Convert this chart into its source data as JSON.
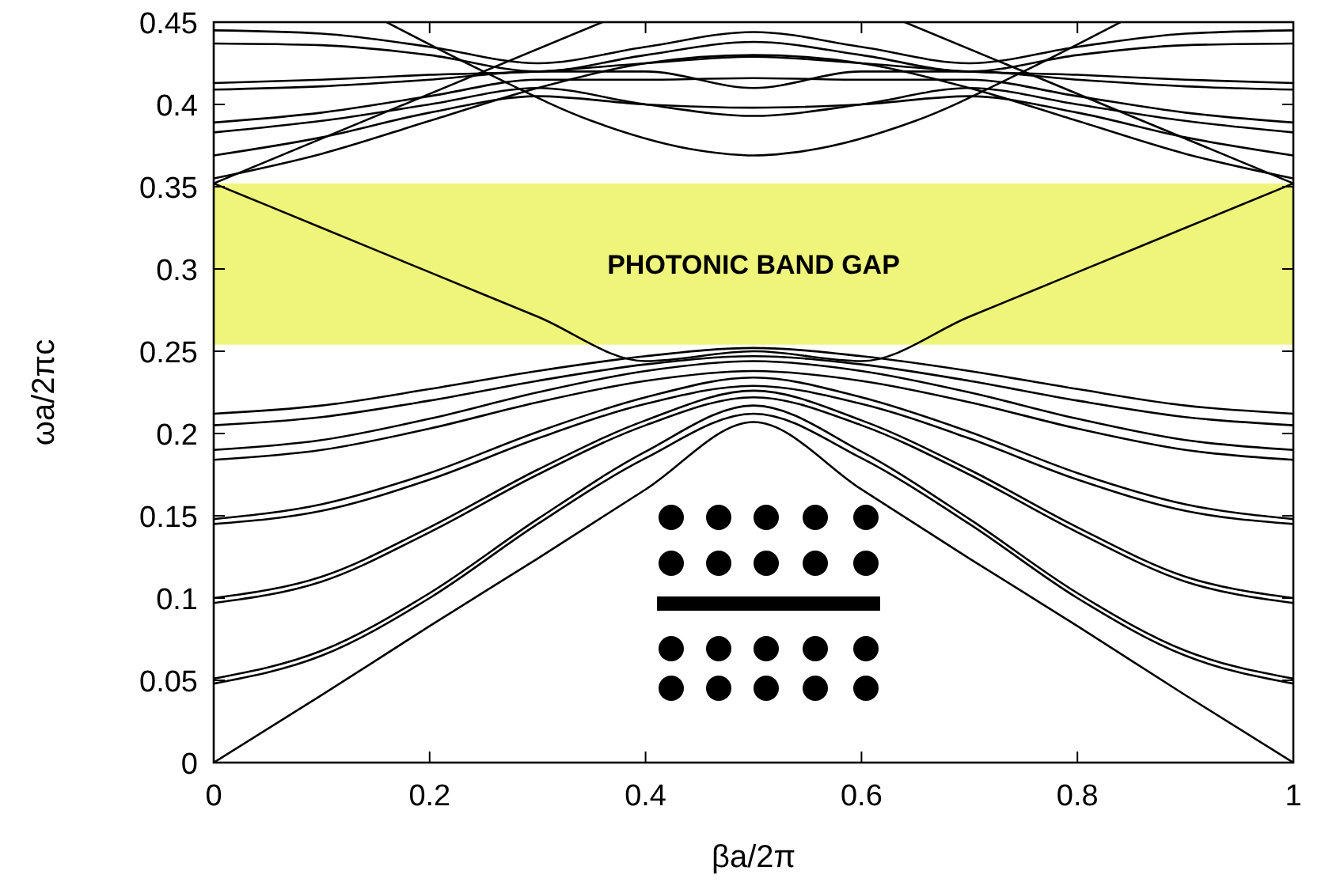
{
  "chart_data": {
    "type": "line",
    "xlabel": "βa/2π",
    "ylabel": "ωa/2πc",
    "x": [
      0,
      0.1,
      0.2,
      0.3,
      0.4,
      0.5,
      0.6,
      0.7,
      0.8,
      0.9,
      1
    ],
    "xlim": [
      0,
      1
    ],
    "xticks": [
      0,
      0.2,
      0.4,
      0.6,
      0.8,
      1
    ],
    "ylim": [
      0,
      0.45
    ],
    "yticks": [
      0,
      0.05,
      0.1,
      0.15,
      0.2,
      0.25,
      0.3,
      0.35,
      0.4,
      0.45
    ],
    "grid": false,
    "marker": "none",
    "line_style": "solid",
    "bands": [
      {
        "axis": "y",
        "from": 0.254,
        "to": 0.352,
        "label": "PHOTONIC BAND GAP",
        "color": "#eef57a"
      }
    ],
    "series": [
      {
        "color": "#000000",
        "values": [
          0,
          0.041,
          0.083,
          0.124,
          0.166,
          0.207,
          0.166,
          0.124,
          0.083,
          0.041,
          0
        ]
      },
      {
        "color": "#000000",
        "values": [
          0.048,
          0.065,
          0.1,
          0.145,
          0.185,
          0.212,
          0.185,
          0.145,
          0.1,
          0.065,
          0.048
        ]
      },
      {
        "color": "#000000",
        "values": [
          0.051,
          0.068,
          0.103,
          0.148,
          0.189,
          0.217,
          0.189,
          0.148,
          0.103,
          0.068,
          0.051
        ]
      },
      {
        "color": "#000000",
        "values": [
          0.097,
          0.11,
          0.14,
          0.175,
          0.205,
          0.222,
          0.205,
          0.175,
          0.14,
          0.11,
          0.097
        ]
      },
      {
        "color": "#000000",
        "values": [
          0.1,
          0.113,
          0.143,
          0.178,
          0.208,
          0.226,
          0.208,
          0.178,
          0.143,
          0.113,
          0.1
        ]
      },
      {
        "color": "#000000",
        "values": [
          0.145,
          0.153,
          0.172,
          0.197,
          0.218,
          0.229,
          0.218,
          0.197,
          0.172,
          0.153,
          0.145
        ]
      },
      {
        "color": "#000000",
        "values": [
          0.148,
          0.157,
          0.176,
          0.201,
          0.222,
          0.234,
          0.222,
          0.201,
          0.176,
          0.157,
          0.148
        ]
      },
      {
        "color": "#000000",
        "values": [
          0.184,
          0.19,
          0.203,
          0.219,
          0.232,
          0.238,
          0.232,
          0.219,
          0.203,
          0.19,
          0.184
        ]
      },
      {
        "color": "#000000",
        "values": [
          0.19,
          0.196,
          0.209,
          0.225,
          0.238,
          0.244,
          0.238,
          0.225,
          0.209,
          0.196,
          0.19
        ]
      },
      {
        "color": "#000000",
        "values": [
          0.205,
          0.21,
          0.22,
          0.232,
          0.242,
          0.247,
          0.242,
          0.232,
          0.22,
          0.21,
          0.205
        ]
      },
      {
        "color": "#000000",
        "values": [
          0.212,
          0.217,
          0.227,
          0.238,
          0.247,
          0.252,
          0.247,
          0.238,
          0.227,
          0.217,
          0.212
        ]
      },
      {
        "color": "#000000",
        "values": [
          0.352,
          0.325,
          0.298,
          0.271,
          0.244,
          0.25,
          0.244,
          0.271,
          0.298,
          0.325,
          0.352
        ]
      },
      {
        "color": "#000000",
        "x": [
          0,
          0.36,
          0.5,
          0.64,
          1
        ],
        "values": [
          0.352,
          0.45,
          null,
          0.45,
          0.352
        ]
      },
      {
        "color": "#000000",
        "x": [
          0.16,
          0.25,
          0.35,
          0.45,
          0.5,
          0.55,
          0.65,
          0.75,
          0.84
        ],
        "values": [
          0.45,
          0.42,
          0.39,
          0.372,
          0.369,
          0.372,
          0.39,
          0.42,
          0.45
        ]
      },
      {
        "color": "#000000",
        "values": [
          0.355,
          0.37,
          0.39,
          0.41,
          0.425,
          0.43,
          0.425,
          0.41,
          0.39,
          0.37,
          0.355
        ]
      },
      {
        "color": "#000000",
        "values": [
          0.369,
          0.38,
          0.395,
          0.405,
          0.4,
          0.398,
          0.4,
          0.405,
          0.395,
          0.38,
          0.369
        ]
      },
      {
        "color": "#000000",
        "values": [
          0.383,
          0.39,
          0.4,
          0.41,
          0.4,
          0.393,
          0.4,
          0.41,
          0.4,
          0.39,
          0.383
        ]
      },
      {
        "color": "#000000",
        "values": [
          0.389,
          0.395,
          0.405,
          0.415,
          0.415,
          0.416,
          0.415,
          0.415,
          0.405,
          0.395,
          0.389
        ]
      },
      {
        "color": "#000000",
        "values": [
          0.409,
          0.411,
          0.415,
          0.42,
          0.42,
          0.41,
          0.42,
          0.42,
          0.415,
          0.411,
          0.409
        ]
      },
      {
        "color": "#000000",
        "values": [
          0.413,
          0.415,
          0.418,
          0.42,
          0.425,
          0.429,
          0.425,
          0.42,
          0.418,
          0.415,
          0.413
        ]
      },
      {
        "color": "#000000",
        "values": [
          0.437,
          0.436,
          0.43,
          0.42,
          0.43,
          0.438,
          0.43,
          0.42,
          0.43,
          0.436,
          0.437
        ]
      },
      {
        "color": "#000000",
        "values": [
          0.445,
          0.443,
          0.435,
          0.425,
          0.435,
          0.444,
          0.435,
          0.425,
          0.435,
          0.443,
          0.445
        ]
      }
    ]
  }
}
